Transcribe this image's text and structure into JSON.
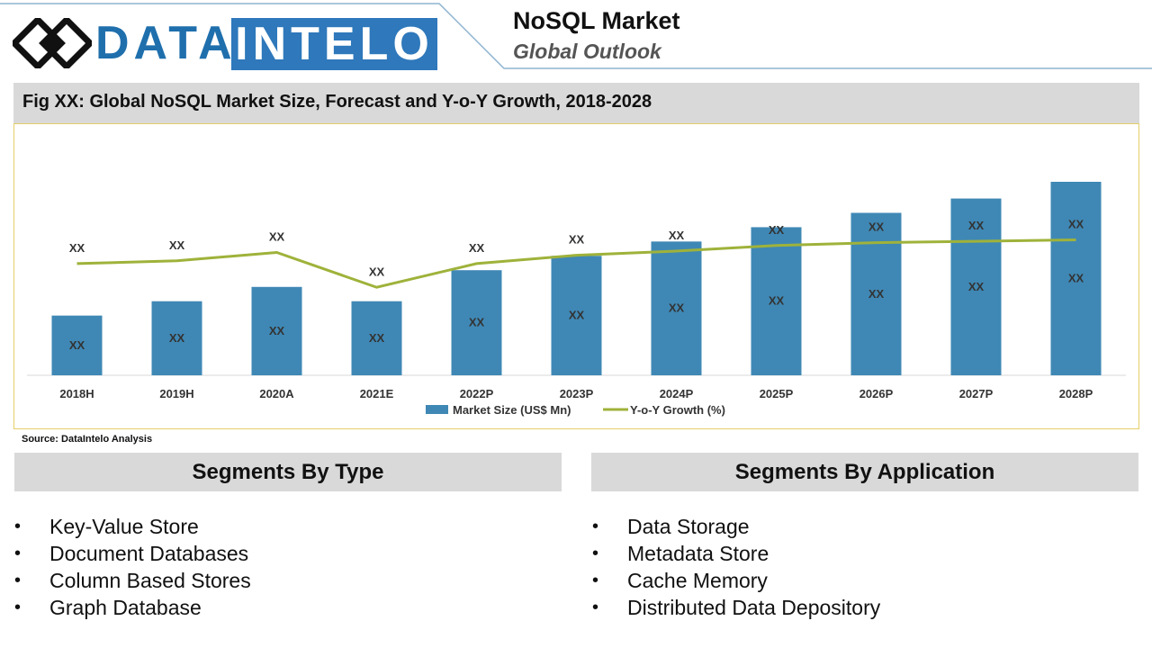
{
  "logo": {
    "part1": "DATA",
    "part2": "INTELO"
  },
  "header": {
    "title": "NoSQL Market",
    "subtitle": "Global Outlook"
  },
  "colors": {
    "bar": "#3f88b5",
    "line": "#9fb23a",
    "logo_blue": "#1f6fad",
    "panel_gray": "#d9d9d9",
    "frame": "#e6cf6a"
  },
  "figure": {
    "title": "Fig XX: Global NoSQL Market Size, Forecast and Y-o-Y Growth, 2018-2028"
  },
  "chart_data": {
    "type": "bar",
    "categories": [
      "2018H",
      "2019H",
      "2020A",
      "2021E",
      "2022P",
      "2023P",
      "2024P",
      "2025P",
      "2026P",
      "2027P",
      "2028P"
    ],
    "series": [
      {
        "name": "Market Size (US$ Mn)",
        "type": "bar",
        "values": [
          25,
          31,
          37,
          31,
          44,
          50,
          56,
          62,
          68,
          74,
          81
        ],
        "labels": [
          "XX",
          "XX",
          "XX",
          "XX",
          "XX",
          "XX",
          "XX",
          "XX",
          "XX",
          "XX",
          "XX"
        ]
      },
      {
        "name": "Y-o-Y Growth (%)",
        "type": "line",
        "values": [
          62,
          64,
          70,
          45,
          62,
          68,
          71,
          75,
          77,
          78,
          79
        ],
        "labels": [
          "XX",
          "XX",
          "XX",
          "XX",
          "XX",
          "XX",
          "XX",
          "XX",
          "XX",
          "XX",
          "XX"
        ]
      }
    ],
    "legend": "bottom",
    "grid": false
  },
  "source": "Source: DataIntelo Analysis",
  "segments": {
    "type": {
      "heading": "Segments By Type",
      "items": [
        "Key-Value Store",
        "Document Databases",
        "Column Based Stores",
        "Graph Database"
      ]
    },
    "application": {
      "heading": "Segments By Application",
      "items": [
        "Data Storage",
        "Metadata Store",
        "Cache Memory",
        "Distributed Data Depository"
      ]
    }
  }
}
